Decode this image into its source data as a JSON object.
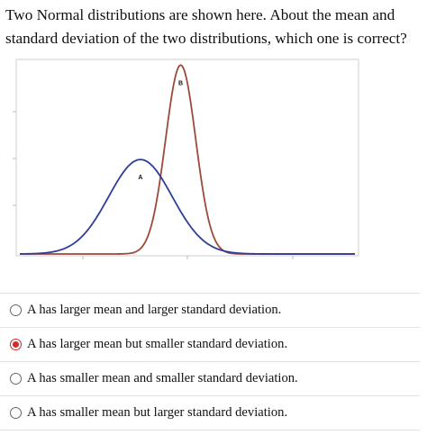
{
  "question": {
    "text": "Two Normal distributions are shown here. About the mean and standard deviation of the two distributions, which one is correct?"
  },
  "chart_data": {
    "type": "line",
    "series": [
      {
        "name": "A",
        "color": "#2e3d99",
        "mean": 0.36,
        "sd": 0.095,
        "peak": 0.5
      },
      {
        "name": "B",
        "color": "#9c4a38",
        "mean": 0.48,
        "sd": 0.045,
        "peak": 1.0
      }
    ],
    "xlim": [
      0,
      1
    ],
    "ylim": [
      0,
      1.03
    ],
    "grid": false
  },
  "options": [
    {
      "label": "A has larger mean and larger standard deviation.",
      "selected": false
    },
    {
      "label": "A has larger mean but smaller standard deviation.",
      "selected": true
    },
    {
      "label": "A has smaller mean and smaller standard deviation.",
      "selected": false
    },
    {
      "label": "A has smaller mean but larger standard deviation.",
      "selected": false
    }
  ]
}
